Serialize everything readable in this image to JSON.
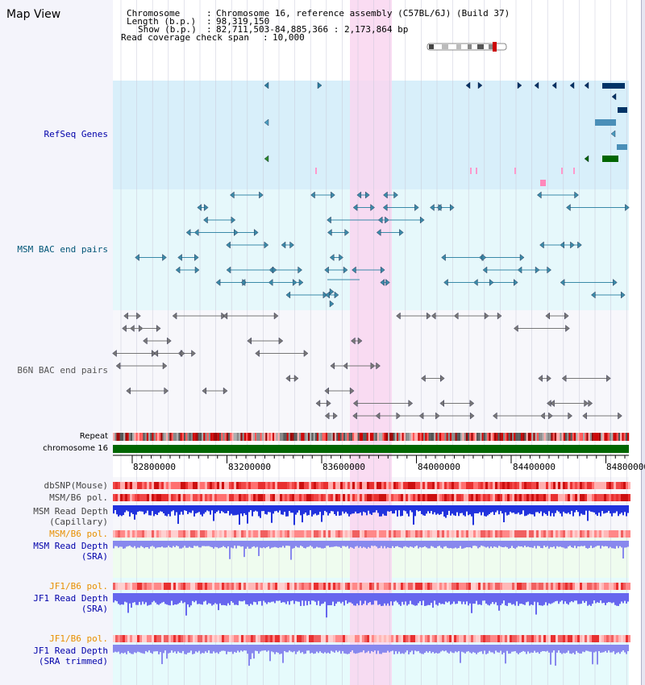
{
  "title": "Map View",
  "info": {
    "chromosome_label": "Chromosome",
    "chromosome_value": "Chromosome 16, reference assembly (C57BL/6J) (Build 37)",
    "length_label": "Length (b.p.)",
    "length_value": "98,319,150",
    "show_label": "Show (b.p.)",
    "show_value": "82,711,503-84,885,366 : 2,173,864 bp",
    "span_label": "Read coverage check span",
    "span_value": "10,000"
  },
  "tracks": {
    "refseq": "RefSeq Genes",
    "msm_bac": "MSM BAC end pairs",
    "b6n_bac": "B6N BAC end pairs",
    "repeat": "Repeat",
    "chromosome": "chromosome 16",
    "dbsnp": "dbSNP(Mouse)",
    "msm_b6_pol_1": "MSM/B6 pol.",
    "msm_read_depth_cap_1": "MSM Read Depth",
    "msm_read_depth_cap_2": "(Capillary)",
    "msm_b6_pol_2": "MSM/B6 pol.",
    "msm_read_depth_sra_1": "MSM Read Depth",
    "msm_read_depth_sra_2": "(SRA)",
    "jf1_b6_pol_1": "JF1/B6 pol.",
    "jf1_read_depth_sra_1": "JF1 Read Depth",
    "jf1_read_depth_sra_2": "(SRA)",
    "jf1_b6_pol_2": "JF1/B6 pol.",
    "jf1_read_depth_trim_1": "JF1 Read Depth",
    "jf1_read_depth_trim_2": "(SRA trimmed)"
  },
  "ruler": {
    "ticks": [
      "82800000",
      "83200000",
      "83600000",
      "84000000",
      "84400000",
      "84800000"
    ]
  },
  "colors": {
    "refseq_text": "#0000aa",
    "msm_text": "#005577",
    "b6n_text": "#555555",
    "orange_text": "#e89000",
    "blue_text": "#0000aa",
    "highlight": "#f9d6f0",
    "refseq_bg": "#d8effa",
    "msm_bg": "#e6f8fb",
    "b6n_bg": "#f7f7fb",
    "sra_bg": "#effcef",
    "jf1_bg": "#e6fbfc",
    "chrom_green": "#006600"
  }
}
